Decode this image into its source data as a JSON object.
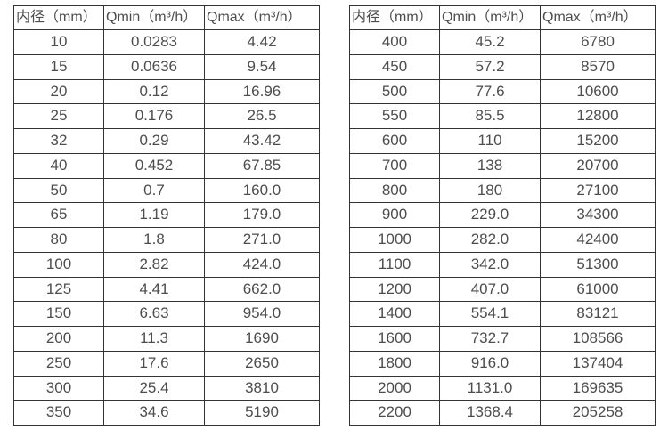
{
  "colors": {
    "background": "#ffffff",
    "border": "#333333",
    "text": "#4d4d4d"
  },
  "tables": [
    {
      "name": "small-diameter-flow-table",
      "headers": [
        "内径（mm）",
        "Qmin（m³/h）",
        "Qmax（m³/h）"
      ],
      "rows": [
        [
          "10",
          "0.0283",
          "4.42"
        ],
        [
          "15",
          "0.0636",
          "9.54"
        ],
        [
          "20",
          "0.12",
          "16.96"
        ],
        [
          "25",
          "0.176",
          "26.5"
        ],
        [
          "32",
          "0.29",
          "43.42"
        ],
        [
          "40",
          "0.452",
          "67.85"
        ],
        [
          "50",
          "0.7",
          "160.0"
        ],
        [
          "65",
          "1.19",
          "179.0"
        ],
        [
          "80",
          "1.8",
          "271.0"
        ],
        [
          "100",
          "2.82",
          "424.0"
        ],
        [
          "125",
          "4.41",
          "662.0"
        ],
        [
          "150",
          "6.63",
          "954.0"
        ],
        [
          "200",
          "11.3",
          "1690"
        ],
        [
          "250",
          "17.6",
          "2650"
        ],
        [
          "300",
          "25.4",
          "3810"
        ],
        [
          "350",
          "34.6",
          "5190"
        ]
      ]
    },
    {
      "name": "large-diameter-flow-table",
      "headers": [
        "内径（mm）",
        "Qmin（m³/h）",
        "Qmax（m³/h）"
      ],
      "rows": [
        [
          "400",
          "45.2",
          "6780"
        ],
        [
          "450",
          "57.2",
          "8570"
        ],
        [
          "500",
          "77.6",
          "10600"
        ],
        [
          "550",
          "85.5",
          "12800"
        ],
        [
          "600",
          "110",
          "15200"
        ],
        [
          "700",
          "138",
          "20700"
        ],
        [
          "800",
          "180",
          "27100"
        ],
        [
          "900",
          "229.0",
          "34300"
        ],
        [
          "1000",
          "282.0",
          "42400"
        ],
        [
          "1100",
          "342.0",
          "51300"
        ],
        [
          "1200",
          "407.0",
          "61000"
        ],
        [
          "1400",
          "554.1",
          "83121"
        ],
        [
          "1600",
          "732.7",
          "108566"
        ],
        [
          "1800",
          "916.0",
          "137404"
        ],
        [
          "2000",
          "1131.0",
          "169635"
        ],
        [
          "2200",
          "1368.4",
          "205258"
        ]
      ]
    }
  ]
}
